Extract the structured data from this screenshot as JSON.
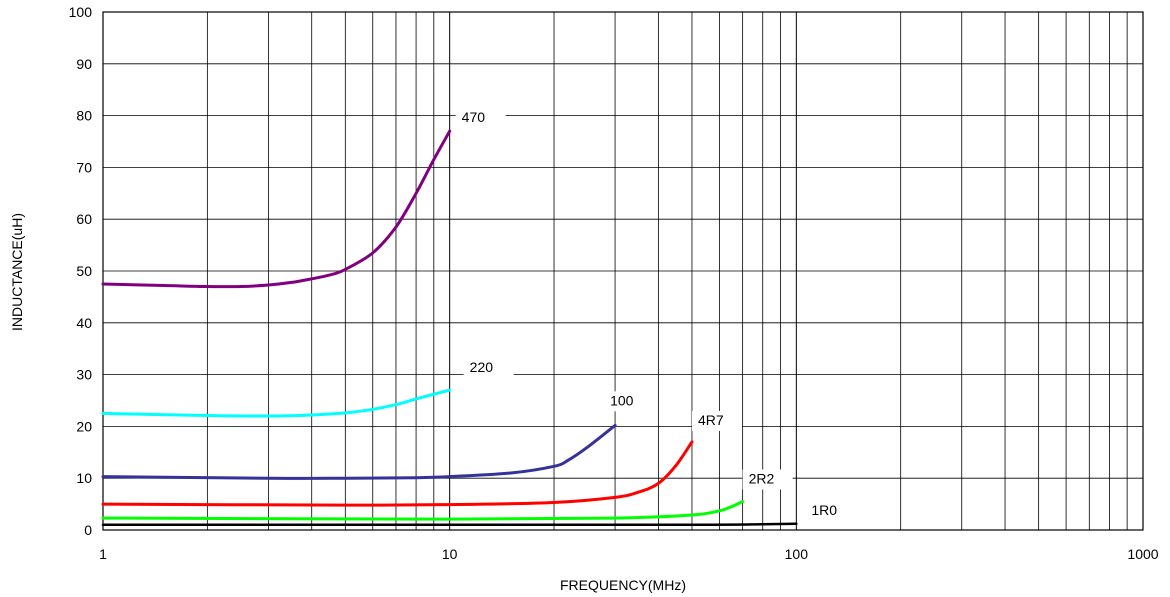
{
  "chart_data": {
    "type": "line",
    "title": "",
    "xlabel": "FREQUENCY(MHz)",
    "ylabel": "INDUCTANCE(uH)",
    "x_scale": "log",
    "xlim": [
      1,
      1000
    ],
    "ylim": [
      0,
      100
    ],
    "grid": true,
    "x_ticks": [
      {
        "value": 1,
        "label": "1"
      },
      {
        "value": 10,
        "label": "10"
      },
      {
        "value": 100,
        "label": "100"
      },
      {
        "value": 1000,
        "label": "1000"
      }
    ],
    "y_ticks": [
      {
        "value": 0,
        "label": "0"
      },
      {
        "value": 10,
        "label": "10"
      },
      {
        "value": 20,
        "label": "20"
      },
      {
        "value": 30,
        "label": "30"
      },
      {
        "value": 40,
        "label": "40"
      },
      {
        "value": 50,
        "label": "50"
      },
      {
        "value": 60,
        "label": "60"
      },
      {
        "value": 70,
        "label": "70"
      },
      {
        "value": 80,
        "label": "80"
      },
      {
        "value": 90,
        "label": "90"
      },
      {
        "value": 100,
        "label": "100"
      }
    ],
    "series": [
      {
        "name": "470",
        "color": "#800080",
        "x": [
          1,
          1.5,
          2,
          2.5,
          3,
          3.5,
          4,
          4.5,
          5,
          6,
          7,
          8,
          9,
          10
        ],
        "y": [
          47.5,
          47.2,
          47.0,
          47.0,
          47.3,
          47.8,
          48.5,
          49.2,
          50.3,
          53.5,
          58.5,
          65.0,
          71.5,
          77.0
        ]
      },
      {
        "name": "220",
        "color": "#00FFFF",
        "x": [
          1,
          2,
          3,
          4,
          5,
          6,
          7,
          8,
          10
        ],
        "y": [
          22.5,
          22.1,
          22.0,
          22.2,
          22.6,
          23.3,
          24.2,
          25.3,
          27.0
        ]
      },
      {
        "name": "100",
        "color": "#333399",
        "x": [
          1,
          3,
          5,
          8,
          10,
          15,
          20,
          22,
          25,
          30
        ],
        "y": [
          10.3,
          10.0,
          10.0,
          10.1,
          10.3,
          11.0,
          12.3,
          13.5,
          16.0,
          20.2
        ]
      },
      {
        "name": "4R7",
        "color": "#FF0000",
        "x": [
          1,
          5,
          10,
          20,
          30,
          35,
          40,
          45,
          50
        ],
        "y": [
          5.0,
          4.8,
          4.9,
          5.3,
          6.3,
          7.3,
          9.0,
          12.5,
          17.0
        ]
      },
      {
        "name": "2R2",
        "color": "#00FF00",
        "x": [
          1,
          10,
          30,
          50,
          60,
          65,
          70
        ],
        "y": [
          2.3,
          2.1,
          2.3,
          2.9,
          3.7,
          4.5,
          5.5
        ]
      },
      {
        "name": "1R0",
        "color": "#000000",
        "x": [
          1,
          10,
          50,
          80,
          100
        ],
        "y": [
          1.0,
          1.0,
          1.0,
          1.1,
          1.2
        ]
      }
    ]
  }
}
